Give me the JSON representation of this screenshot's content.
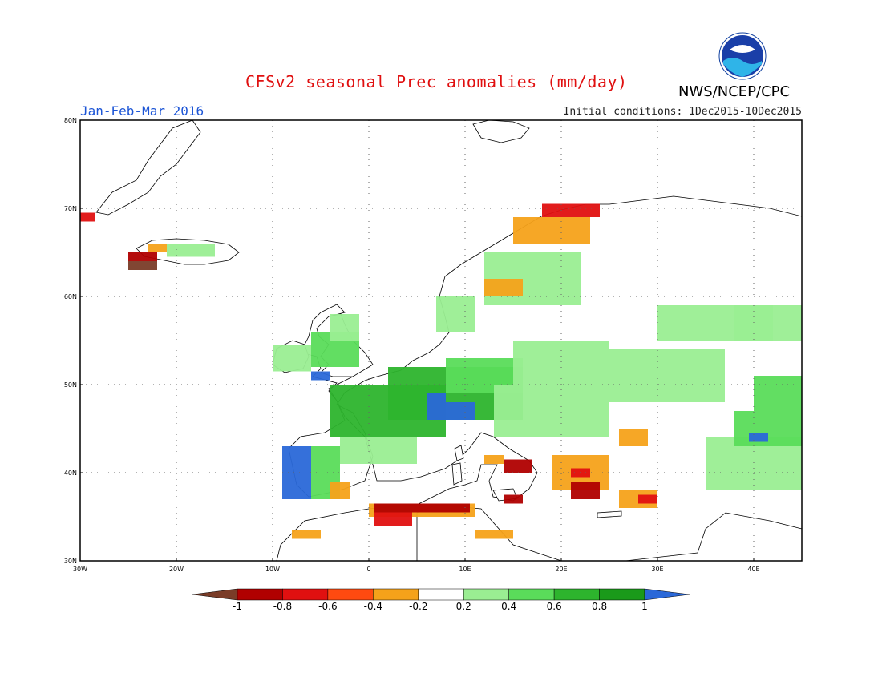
{
  "title": "CFSv2 seasonal Prec anomalies (mm/day)",
  "agency": "NWS/NCEP/CPC",
  "logo_text": "NOAA",
  "period": "Jan-Feb-Mar 2016",
  "initial_conditions": "Initial conditions: 1Dec2015-10Dec2015",
  "map": {
    "lon_range": [
      -30,
      45
    ],
    "lat_range": [
      30,
      80
    ],
    "lat_labels": [
      "80N",
      "70N",
      "60N",
      "50N",
      "40N",
      "30N"
    ],
    "lat_values": [
      80,
      70,
      60,
      50,
      40,
      30
    ],
    "lon_labels": [
      "30W",
      "20W",
      "10W",
      "0",
      "10E",
      "20E",
      "30E",
      "40E"
    ],
    "lon_values": [
      -30,
      -20,
      -10,
      0,
      10,
      20,
      30,
      40
    ],
    "grid": "dotted"
  },
  "colorbar": {
    "labels": [
      "-1",
      "-0.8",
      "-0.6",
      "-0.4",
      "-0.2",
      "0.2",
      "0.4",
      "0.6",
      "0.8",
      "1"
    ],
    "colors": [
      "#7a3c28",
      "#b00000",
      "#e01010",
      "#ff4a10",
      "#f5a21a",
      "#ffffff",
      "#9aee92",
      "#5adc5a",
      "#2db42d",
      "#1a9a1a",
      "#2a68d8"
    ]
  },
  "anomalies": [
    {
      "lon": -30,
      "lat": 68.5,
      "w": 1.5,
      "h": 1,
      "level": "-0.6"
    },
    {
      "lon": -25,
      "lat": 64,
      "w": 3,
      "h": 1,
      "level": "-0.8"
    },
    {
      "lon": -25,
      "lat": 63,
      "w": 3,
      "h": 1,
      "level": "-1"
    },
    {
      "lon": -23,
      "lat": 65,
      "w": 2,
      "h": 1,
      "level": "-0.4"
    },
    {
      "lon": -21,
      "lat": 64.5,
      "w": 5,
      "h": 1.5,
      "level": "0.4"
    },
    {
      "lon": -10,
      "lat": 51.5,
      "w": 4,
      "h": 3,
      "level": "0.4"
    },
    {
      "lon": -6,
      "lat": 50.5,
      "w": 2,
      "h": 1,
      "level": "1"
    },
    {
      "lon": -6,
      "lat": 52,
      "w": 5,
      "h": 4,
      "level": "0.6"
    },
    {
      "lon": -4,
      "lat": 55,
      "w": 3,
      "h": 3,
      "level": "0.4"
    },
    {
      "lon": -4,
      "lat": 44,
      "w": 12,
      "h": 6,
      "level": "0.8"
    },
    {
      "lon": -3,
      "lat": 41,
      "w": 8,
      "h": 3,
      "level": "0.4"
    },
    {
      "lon": 2,
      "lat": 46,
      "w": 14,
      "h": 6,
      "level": "0.8"
    },
    {
      "lon": 6,
      "lat": 46,
      "w": 5,
      "h": 2,
      "level": "1"
    },
    {
      "lon": 6,
      "lat": 48,
      "w": 2,
      "h": 1,
      "level": "1"
    },
    {
      "lon": 8,
      "lat": 49,
      "w": 8,
      "h": 4,
      "level": "0.6"
    },
    {
      "lon": 13,
      "lat": 44,
      "w": 12,
      "h": 6,
      "level": "0.4"
    },
    {
      "lon": 15,
      "lat": 50,
      "w": 10,
      "h": 5,
      "level": "0.4"
    },
    {
      "lon": 25,
      "lat": 48,
      "w": 12,
      "h": 6,
      "level": "0.4"
    },
    {
      "lon": 35,
      "lat": 38,
      "w": 10,
      "h": 6,
      "level": "0.4"
    },
    {
      "lon": 38,
      "lat": 43,
      "w": 7,
      "h": 4,
      "level": "0.6"
    },
    {
      "lon": 40,
      "lat": 47,
      "w": 5,
      "h": 4,
      "level": "0.6"
    },
    {
      "lon": 39.5,
      "lat": 43.5,
      "w": 2,
      "h": 1,
      "level": "1"
    },
    {
      "lon": 30,
      "lat": 55,
      "w": 12,
      "h": 4,
      "level": "0.4"
    },
    {
      "lon": 38,
      "lat": 55,
      "w": 7,
      "h": 4,
      "level": "0.4"
    },
    {
      "lon": 12,
      "lat": 59,
      "w": 10,
      "h": 6,
      "level": "0.4"
    },
    {
      "lon": 7,
      "lat": 56,
      "w": 4,
      "h": 4,
      "level": "0.4"
    },
    {
      "lon": -9,
      "lat": 37,
      "w": 3,
      "h": 6,
      "level": "1"
    },
    {
      "lon": -6,
      "lat": 37,
      "w": 3,
      "h": 6,
      "level": "0.6"
    },
    {
      "lon": -4,
      "lat": 37,
      "w": 2,
      "h": 2,
      "level": "-0.4"
    },
    {
      "lon": -8,
      "lat": 32.5,
      "w": 3,
      "h": 1,
      "level": "-0.4"
    },
    {
      "lon": 0,
      "lat": 35,
      "w": 11,
      "h": 1.5,
      "level": "-0.4"
    },
    {
      "lon": 0.5,
      "lat": 34,
      "w": 4,
      "h": 1.5,
      "level": "-0.6"
    },
    {
      "lon": 0.5,
      "lat": 35.5,
      "w": 10,
      "h": 1,
      "level": "-0.8"
    },
    {
      "lon": 11,
      "lat": 32.5,
      "w": 4,
      "h": 1,
      "level": "-0.4"
    },
    {
      "lon": 14,
      "lat": 36.5,
      "w": 2,
      "h": 1,
      "level": "-0.8"
    },
    {
      "lon": 14,
      "lat": 40,
      "w": 3,
      "h": 1.5,
      "level": "-0.8"
    },
    {
      "lon": 12,
      "lat": 41,
      "w": 2,
      "h": 1,
      "level": "-0.4"
    },
    {
      "lon": 19,
      "lat": 38,
      "w": 6,
      "h": 4,
      "level": "-0.4"
    },
    {
      "lon": 21,
      "lat": 37,
      "w": 3,
      "h": 2,
      "level": "-0.8"
    },
    {
      "lon": 21,
      "lat": 39.5,
      "w": 2,
      "h": 1,
      "level": "-0.6"
    },
    {
      "lon": 26,
      "lat": 36,
      "w": 4,
      "h": 2,
      "level": "-0.4"
    },
    {
      "lon": 28,
      "lat": 36.5,
      "w": 2,
      "h": 1,
      "level": "-0.6"
    },
    {
      "lon": 26,
      "lat": 43,
      "w": 3,
      "h": 2,
      "level": "-0.4"
    },
    {
      "lon": 12,
      "lat": 60,
      "w": 4,
      "h": 2,
      "level": "-0.4"
    },
    {
      "lon": 15,
      "lat": 66,
      "w": 8,
      "h": 3,
      "level": "-0.4"
    },
    {
      "lon": 18,
      "lat": 69,
      "w": 6,
      "h": 1.5,
      "level": "-0.6"
    }
  ]
}
